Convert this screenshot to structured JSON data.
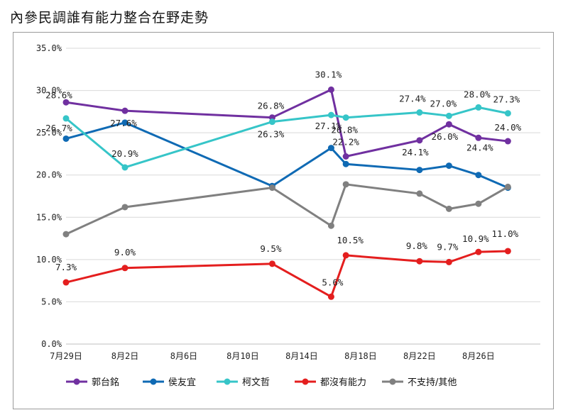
{
  "title": "內參民調誰有能力整合在野走勢",
  "chart_data": {
    "type": "line",
    "title": "內參民調誰有能力整合在野走勢",
    "xlabel": "",
    "ylabel": "",
    "x_ticks": [
      "7月29日",
      "8月2日",
      "8月6日",
      "8月10日",
      "8月14日",
      "8月18日",
      "8月22日",
      "8月26日"
    ],
    "x_tick_days": [
      0,
      4,
      8,
      12,
      16,
      20,
      24,
      28
    ],
    "x_days": [
      0,
      4,
      14,
      18,
      19,
      24,
      26,
      28,
      30
    ],
    "y_ticks": [
      "0.0%",
      "5.0%",
      "10.0%",
      "15.0%",
      "20.0%",
      "25.0%",
      "30.0%",
      "35.0%"
    ],
    "ylim": [
      0,
      35
    ],
    "grid": true,
    "legend_position": "bottom",
    "series": [
      {
        "name": "郭台銘",
        "color": "#7030a0",
        "values": [
          28.6,
          27.6,
          26.8,
          30.1,
          22.2,
          24.1,
          26.0,
          24.4,
          24.0
        ],
        "labels": [
          "28.6%",
          "27.6%",
          "26.8%",
          "30.1%",
          "22.2%",
          "24.1%",
          "26.0%",
          "24.4%",
          "24.0%"
        ]
      },
      {
        "name": "侯友宜",
        "color": "#0f6ab4",
        "values": [
          24.3,
          26.2,
          18.7,
          23.2,
          21.3,
          20.6,
          21.1,
          20.0,
          18.5
        ],
        "labels": []
      },
      {
        "name": "柯文哲",
        "color": "#36c5c8",
        "values": [
          26.7,
          20.9,
          26.3,
          27.1,
          26.8,
          27.4,
          27.0,
          28.0,
          27.3
        ],
        "labels": [
          "26.7%",
          "20.9%",
          "26.3%",
          "27.1%",
          "26.8%",
          "27.4%",
          "27.0%",
          "28.0%",
          "27.3%"
        ]
      },
      {
        "name": "都沒有能力",
        "color": "#e41e1e",
        "values": [
          7.3,
          9.0,
          9.5,
          5.6,
          10.5,
          9.8,
          9.7,
          10.9,
          11.0
        ],
        "labels": [
          "7.3%",
          "9.0%",
          "9.5%",
          "5.6%",
          "10.5%",
          "9.8%",
          "9.7%",
          "10.9%",
          "11.0%"
        ]
      },
      {
        "name": "不支持/其他",
        "color": "#808080",
        "values": [
          13.0,
          16.2,
          18.5,
          14.0,
          18.9,
          17.8,
          16.0,
          16.6,
          18.6
        ],
        "labels": []
      }
    ]
  }
}
